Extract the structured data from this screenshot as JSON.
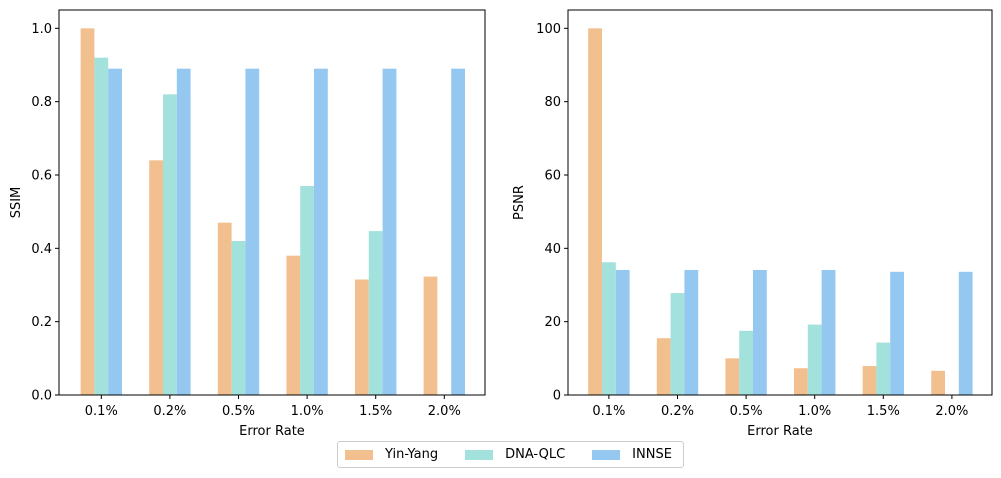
{
  "chart_data": [
    {
      "type": "bar",
      "xlabel": "Error Rate",
      "ylabel": "SSIM",
      "categories": [
        "0.1%",
        "0.2%",
        "0.5%",
        "1.0%",
        "1.5%",
        "2.0%"
      ],
      "ylim": [
        0,
        1.05
      ],
      "yticks": [
        "0.0",
        "0.2",
        "0.4",
        "0.6",
        "0.8",
        "1.0"
      ],
      "series": [
        {
          "name": "Yin-Yang",
          "values": [
            1.0,
            0.64,
            0.47,
            0.38,
            0.315,
            0.323
          ]
        },
        {
          "name": "DNA-QLC",
          "values": [
            0.92,
            0.82,
            0.42,
            0.57,
            0.447,
            0
          ]
        },
        {
          "name": "INNSE",
          "values": [
            0.89,
            0.89,
            0.89,
            0.89,
            0.89,
            0.89
          ]
        }
      ],
      "grid": false
    },
    {
      "type": "bar",
      "xlabel": "Error Rate",
      "ylabel": "PSNR",
      "categories": [
        "0.1%",
        "0.2%",
        "0.5%",
        "1.0%",
        "1.5%",
        "2.0%"
      ],
      "ylim": [
        0,
        105
      ],
      "yticks": [
        "0",
        "20",
        "40",
        "60",
        "80",
        "100"
      ],
      "series": [
        {
          "name": "Yin-Yang",
          "values": [
            100,
            15.5,
            10.0,
            7.3,
            7.9,
            6.6
          ]
        },
        {
          "name": "DNA-QLC",
          "values": [
            36.2,
            27.8,
            17.5,
            19.2,
            14.3,
            0
          ]
        },
        {
          "name": "INNSE",
          "values": [
            34.1,
            34.1,
            34.1,
            34.1,
            33.6,
            33.6
          ]
        }
      ],
      "grid": false
    }
  ],
  "legend": {
    "placement": "bottom-center",
    "items": [
      {
        "label": "Yin-Yang",
        "color": "#f2c08f"
      },
      {
        "label": "DNA-QLC",
        "color": "#a3e1dc"
      },
      {
        "label": "INNSE",
        "color": "#95c8f0"
      }
    ]
  },
  "colors": {
    "Yin-Yang": "#f2c08f",
    "DNA-QLC": "#a3e1dc",
    "INNSE": "#95c8f0"
  }
}
